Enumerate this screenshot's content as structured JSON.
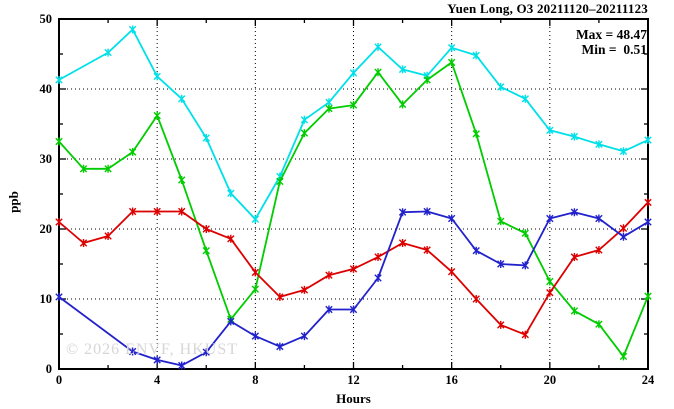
{
  "title": "Yuen Long, O3 20211120–20211123",
  "annotation": {
    "max_label": "Max = 48.47",
    "min_label": "Min =  0.51"
  },
  "watermark": "© 2026 ENVF, HKUST",
  "chart_data": {
    "type": "line",
    "title": "Yuen Long, O3 20211120–20211123",
    "xlabel": "Hours",
    "ylabel": "ppb",
    "xlim": [
      0,
      24
    ],
    "ylim": [
      0,
      50
    ],
    "x_major_ticks": [
      0,
      4,
      8,
      12,
      16,
      20,
      24
    ],
    "x_minor_step": 2,
    "y_major_ticks": [
      0,
      10,
      20,
      30,
      40,
      50
    ],
    "y_minor_step": 5,
    "grid_x_at": [
      4,
      8,
      12,
      16,
      20
    ],
    "grid_y_at": [
      10,
      20,
      30,
      40
    ],
    "legend_position": "none",
    "stat_max": 48.47,
    "stat_min": 0.51,
    "x": [
      0,
      1,
      2,
      3,
      4,
      5,
      6,
      7,
      8,
      9,
      10,
      11,
      12,
      13,
      14,
      15,
      16,
      17,
      18,
      19,
      20,
      21,
      22,
      23,
      24
    ],
    "series": [
      {
        "name": "cyan-line",
        "color": "#00e0e8",
        "values": [
          41.3,
          null,
          45.2,
          48.5,
          41.8,
          38.6,
          33.0,
          25.1,
          21.4,
          27.5,
          35.6,
          38.1,
          42.3,
          46.0,
          42.8,
          41.9,
          45.9,
          44.8,
          40.3,
          38.6,
          34.1,
          33.2,
          32.1,
          31.1,
          32.7
        ]
      },
      {
        "name": "green-line",
        "color": "#00cc00",
        "values": [
          32.5,
          28.6,
          28.6,
          31.0,
          36.2,
          27.0,
          16.9,
          7.1,
          11.4,
          26.8,
          33.7,
          37.2,
          37.7,
          42.4,
          37.8,
          41.3,
          43.8,
          33.6,
          21.1,
          19.4,
          12.5,
          8.3,
          6.4,
          1.8,
          10.4
        ]
      },
      {
        "name": "red-line",
        "color": "#dd0000",
        "values": [
          21.0,
          18.0,
          19.0,
          22.5,
          22.5,
          22.5,
          20.0,
          18.6,
          13.8,
          10.3,
          11.3,
          13.4,
          14.3,
          16.0,
          18.0,
          17.0,
          13.9,
          10.0,
          6.3,
          4.9,
          10.9,
          16.0,
          17.0,
          20.1,
          23.8
        ]
      },
      {
        "name": "blue-line",
        "color": "#2222cc",
        "values": [
          10.3,
          null,
          null,
          2.5,
          1.3,
          0.5,
          2.4,
          6.8,
          4.7,
          3.2,
          4.7,
          8.5,
          8.5,
          13.0,
          22.4,
          22.5,
          21.5,
          16.9,
          15.0,
          14.8,
          21.5,
          22.4,
          21.5,
          18.9,
          21.0
        ]
      }
    ]
  }
}
